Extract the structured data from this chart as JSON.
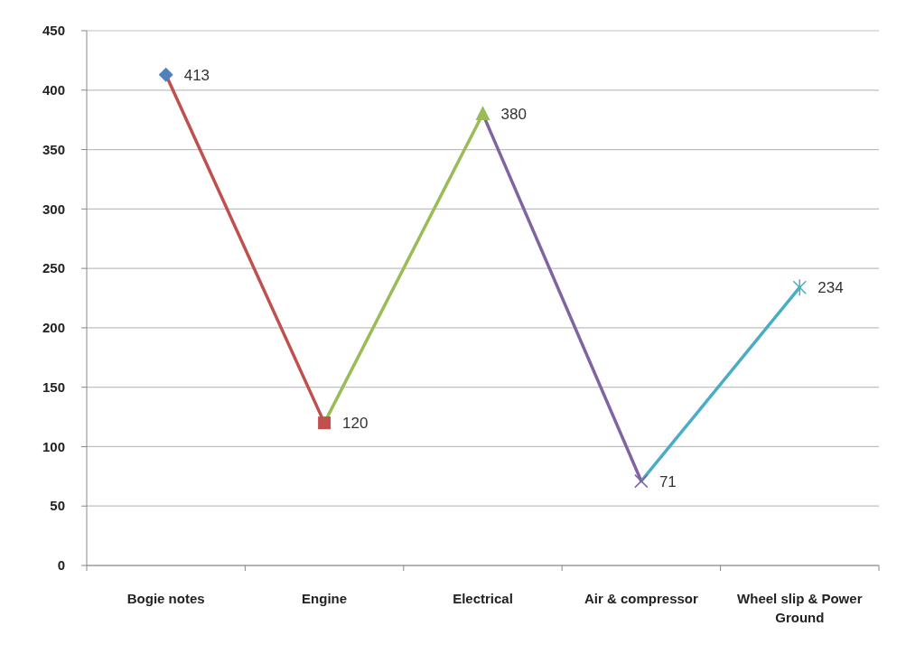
{
  "chart_data": {
    "type": "line",
    "categories": [
      "Bogie notes",
      "Engine",
      "Electrical",
      "Air & compressor",
      "Wheel slip & Power Ground"
    ],
    "series": [
      {
        "values": [
          413,
          120,
          380,
          71,
          234
        ],
        "colors": [
          "#4f81bd",
          "#c0504d",
          "#9bbb59",
          "#8064a2",
          "#4bacc6"
        ]
      }
    ],
    "ylim": [
      0,
      450
    ],
    "yticks": [
      0,
      50,
      100,
      150,
      200,
      250,
      300,
      350,
      400,
      450
    ],
    "grid": "y",
    "marker": "diamond",
    "data_labels": true
  }
}
